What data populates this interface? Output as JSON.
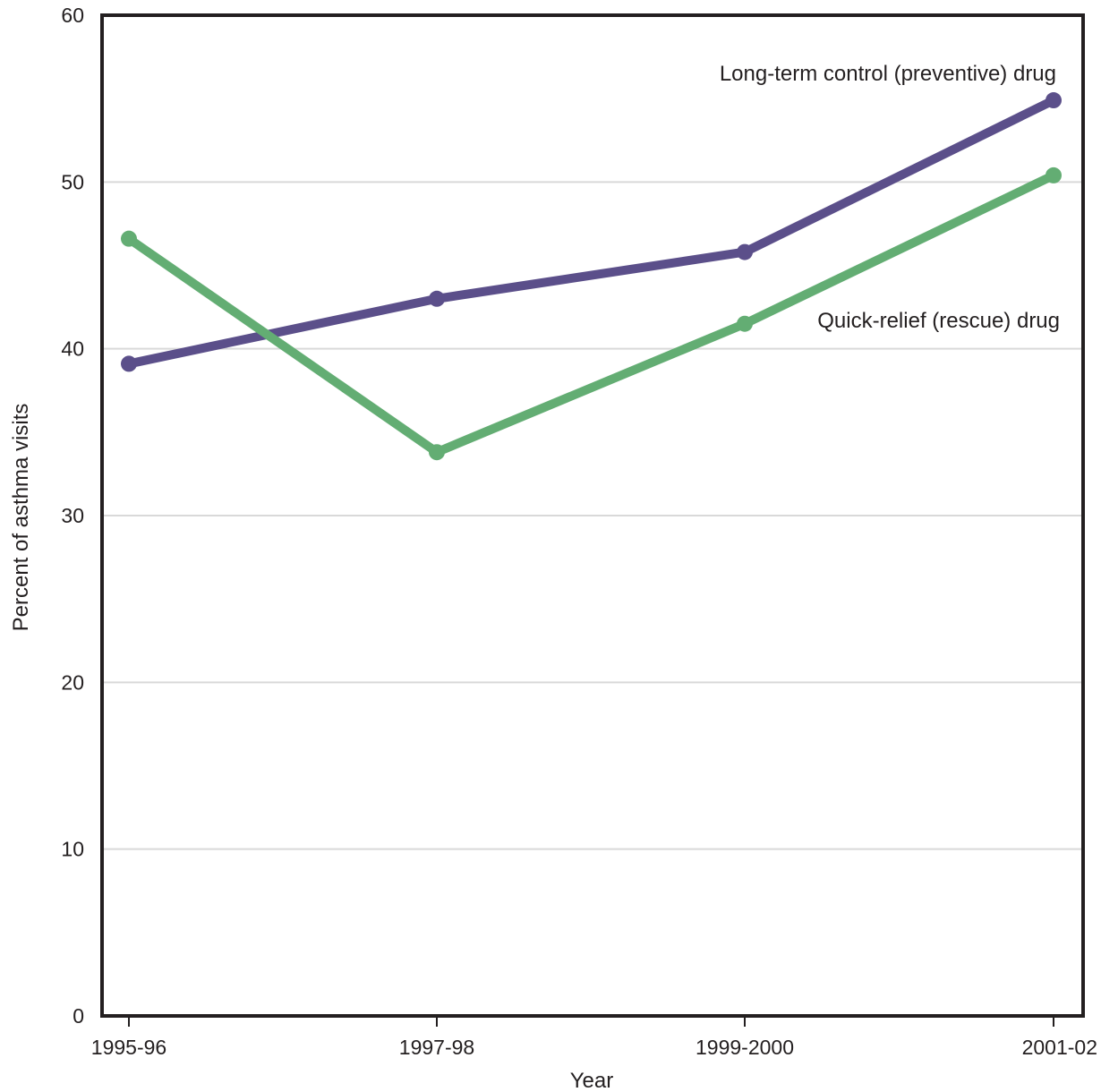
{
  "chart_data": {
    "type": "line",
    "categories": [
      "1995-96",
      "1997-98",
      "1999-2000",
      "2001-02"
    ],
    "series": [
      {
        "name": "Long-term control (preventive) drug",
        "values": [
          39.1,
          43.0,
          45.8,
          54.9
        ],
        "color": "#5b4f8a"
      },
      {
        "name": "Quick-relief (rescue) drug",
        "values": [
          46.6,
          33.8,
          41.5,
          50.4
        ],
        "color": "#63ad73"
      }
    ],
    "xlabel": "Year",
    "ylabel": "Percent of asthma visits",
    "ylim": [
      0,
      60
    ],
    "yticks": [
      "0",
      "10",
      "20",
      "30",
      "40",
      "50",
      "60"
    ],
    "grid": true,
    "gridline_color": "#d9d9d9",
    "axis_color": "#231f20"
  }
}
